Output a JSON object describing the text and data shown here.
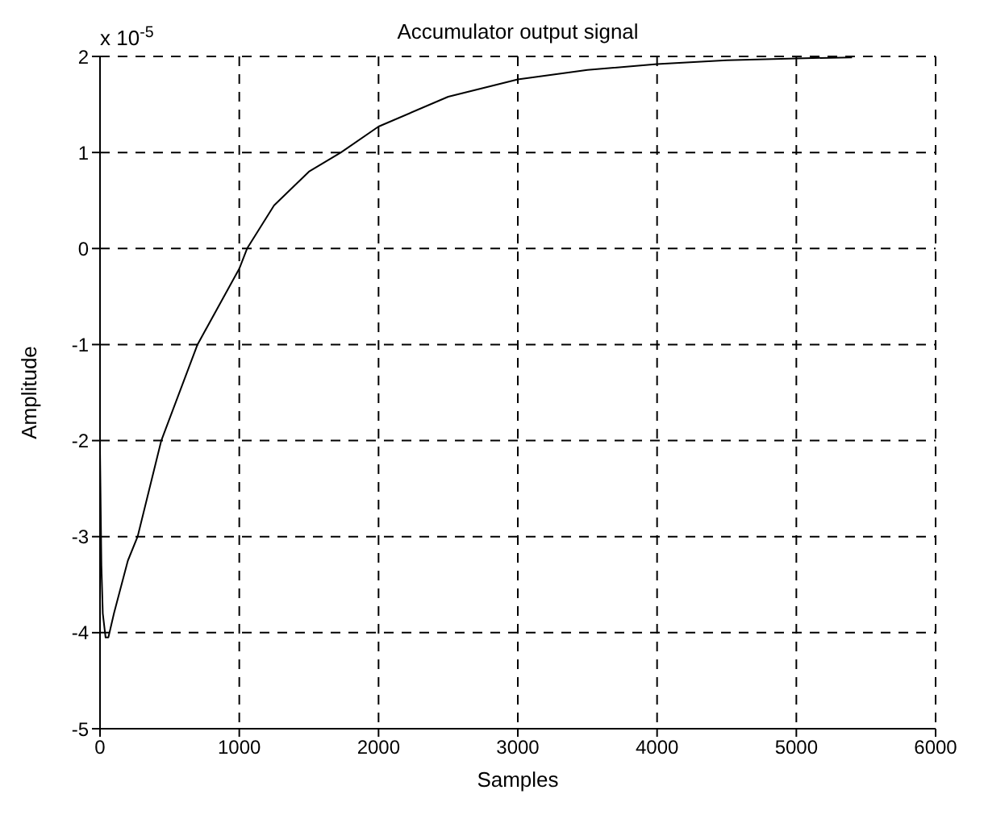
{
  "chart_data": {
    "type": "line",
    "title": "Accumulator output signal",
    "xlabel": "Samples",
    "ylabel": "Amplitude",
    "annotations": [
      "x 10$^{-5}$"
    ],
    "x": [
      0,
      10,
      20,
      40,
      60,
      100,
      200,
      270,
      440,
      700,
      1000,
      1056,
      1250,
      1500,
      1730,
      2000,
      2500,
      3000,
      3500,
      4000,
      4500,
      5000,
      5400
    ],
    "series": [
      {
        "color": "#000000",
        "values": [
          -2.1,
          -3.3,
          -3.8,
          -4.05,
          -4.05,
          -3.8,
          -3.25,
          -3.0,
          -2.0,
          -1.0,
          -0.21,
          0,
          0.45,
          0.8,
          1.0,
          1.27,
          1.58,
          1.76,
          1.86,
          1.92,
          1.96,
          1.98,
          1.99
        ]
      }
    ],
    "xlim": [
      0,
      6000
    ],
    "xticks": [
      0,
      1000,
      2000,
      3000,
      4000,
      5000,
      6000
    ],
    "ylim": [
      -5,
      2
    ],
    "yticks": [
      -5,
      -4,
      -3,
      -2,
      -1,
      0,
      1,
      2
    ],
    "grid": true,
    "legend": false,
    "marker": "none",
    "line_style": "solid"
  }
}
